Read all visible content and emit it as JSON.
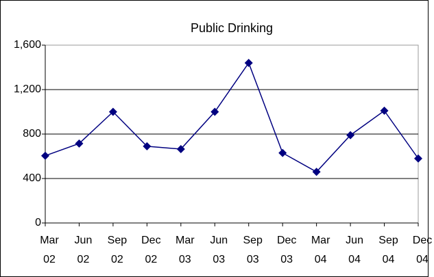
{
  "chart_data": {
    "type": "line",
    "title": "Public Drinking",
    "categories": [
      "Mar 02",
      "Jun 02",
      "Sep 02",
      "Dec 02",
      "Mar 03",
      "Jun 03",
      "Sep 03",
      "Dec 03",
      "Mar 04",
      "Jun 04",
      "Sep 04",
      "Dec 04"
    ],
    "series": [
      {
        "name": "Public Drinking",
        "color": "#000080",
        "values": [
          605,
          715,
          1000,
          690,
          665,
          1000,
          1440,
          630,
          460,
          790,
          1010,
          580
        ]
      }
    ],
    "ylim": [
      0,
      1600
    ],
    "yticks": [
      0,
      400,
      800,
      {
        "value": 1200,
        "label": "1,200"
      },
      {
        "value": 1600,
        "label": "1,600"
      }
    ],
    "grid": true
  }
}
